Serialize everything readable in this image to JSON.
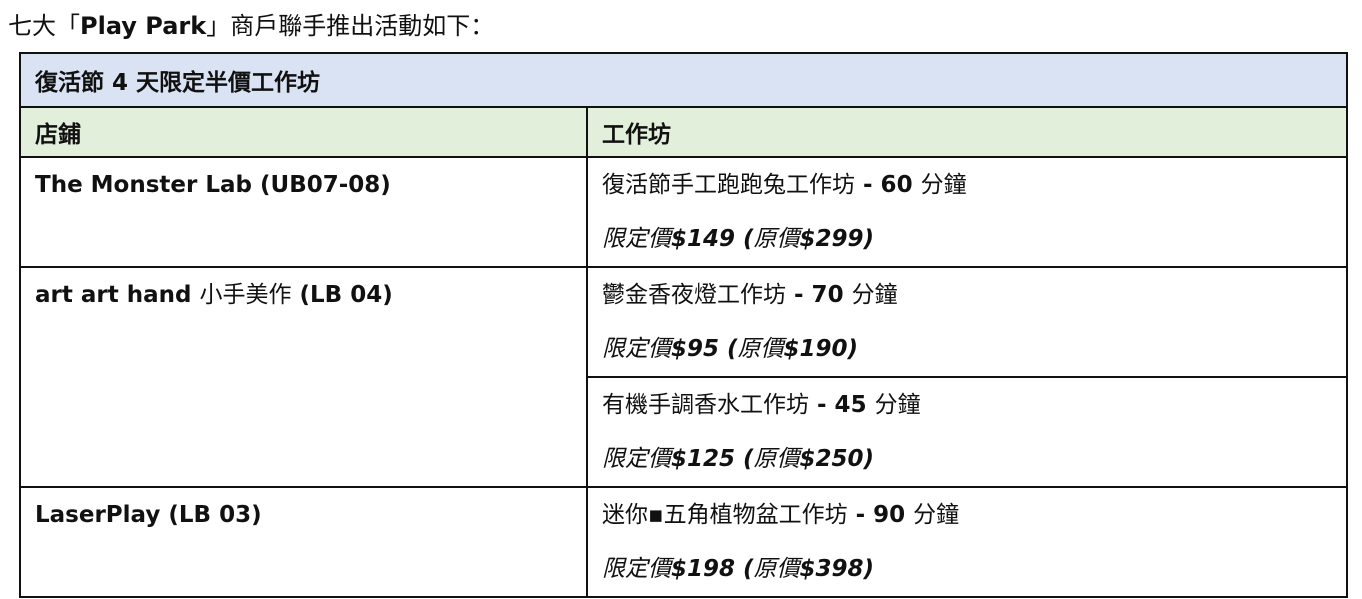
{
  "intro": {
    "pre": "七大「",
    "brand": "Play Park",
    "post": "」商戶聯手推出活動如下："
  },
  "table": {
    "title": "復活節 4 天限定半價工作坊",
    "headers": {
      "shop": "店鋪",
      "workshop": "工作坊"
    },
    "rows": [
      {
        "shop_latin": "The Monster Lab (UB07-08)",
        "shop_cjk": "",
        "shop_tail": "",
        "workshops": [
          {
            "name": "復活節手工跑跑兔工作坊",
            "duration": " - 60 ",
            "unit": "分鐘",
            "price_label": "限定價",
            "price": "$149 (",
            "orig_label": "原價",
            "orig": "$299)"
          }
        ]
      },
      {
        "shop_latin": "art art hand ",
        "shop_cjk": "小手美作",
        "shop_tail": " (LB 04)",
        "workshops": [
          {
            "name": "鬱金香夜燈工作坊",
            "duration": " - 70 ",
            "unit": "分鐘",
            "price_label": "限定價",
            "price": "$95 (",
            "orig_label": "原價",
            "orig": "$190)"
          },
          {
            "name": "有機手調香水工作坊",
            "duration": " - 45 ",
            "unit": "分鐘",
            "price_label": "限定價",
            "price": "$125 (",
            "orig_label": "原價",
            "orig": "$250)"
          }
        ]
      },
      {
        "shop_latin": "LaserPlay (LB 03)",
        "shop_cjk": "",
        "shop_tail": "",
        "workshops": [
          {
            "name": "迷你▪五角植物盆工作坊",
            "duration": " - 90 ",
            "unit": "分鐘",
            "price_label": "限定價",
            "price": "$198 (",
            "orig_label": "原價",
            "orig": "$398)"
          }
        ]
      }
    ]
  },
  "colors": {
    "title_bg": "#dae3f3",
    "header_bg": "#e2efda"
  }
}
